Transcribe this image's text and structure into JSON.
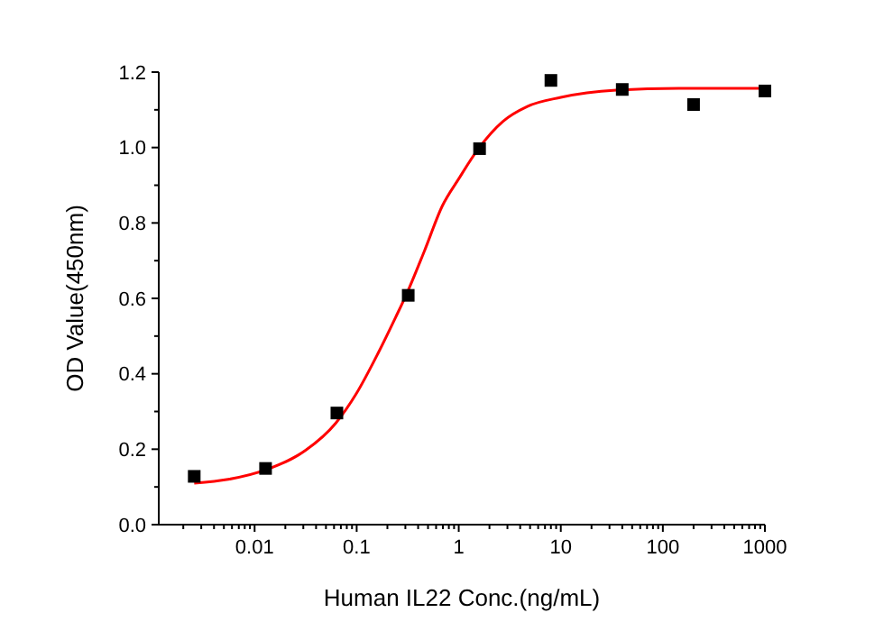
{
  "chart_data": {
    "type": "scatter",
    "xlabel": "Human IL22 Conc.(ng/mL)",
    "ylabel": "OD Value(450nm)",
    "log": "x",
    "xlim": [
      0.00115,
      1000
    ],
    "ylim": [
      0,
      1.2
    ],
    "xticks": [
      {
        "value": 0.002,
        "label": null
      },
      {
        "value": 0.003,
        "label": null
      },
      {
        "value": 0.004,
        "label": null
      },
      {
        "value": 0.005,
        "label": null
      },
      {
        "value": 0.006,
        "label": null
      },
      {
        "value": 0.007,
        "label": null
      },
      {
        "value": 0.008,
        "label": null
      },
      {
        "value": 0.009,
        "label": null
      },
      0.01,
      {
        "value": 0.02,
        "label": null
      },
      {
        "value": 0.03,
        "label": null
      },
      {
        "value": 0.04,
        "label": null
      },
      {
        "value": 0.05,
        "label": null
      },
      {
        "value": 0.06,
        "label": null
      },
      {
        "value": 0.07,
        "label": null
      },
      {
        "value": 0.08,
        "label": null
      },
      {
        "value": 0.09,
        "label": null
      },
      0.1,
      {
        "value": 0.2,
        "label": null
      },
      {
        "value": 0.3,
        "label": null
      },
      {
        "value": 0.4,
        "label": null
      },
      {
        "value": 0.5,
        "label": null
      },
      {
        "value": 0.6,
        "label": null
      },
      {
        "value": 0.7,
        "label": null
      },
      {
        "value": 0.8,
        "label": null
      },
      {
        "value": 0.9,
        "label": null
      },
      1,
      {
        "value": 2,
        "label": null
      },
      {
        "value": 3,
        "label": null
      },
      {
        "value": 4,
        "label": null
      },
      {
        "value": 5,
        "label": null
      },
      {
        "value": 6,
        "label": null
      },
      {
        "value": 7,
        "label": null
      },
      {
        "value": 8,
        "label": null
      },
      {
        "value": 9,
        "label": null
      },
      10,
      {
        "value": 20,
        "label": null
      },
      {
        "value": 30,
        "label": null
      },
      {
        "value": 40,
        "label": null
      },
      {
        "value": 50,
        "label": null
      },
      {
        "value": 60,
        "label": null
      },
      {
        "value": 70,
        "label": null
      },
      {
        "value": 80,
        "label": null
      },
      {
        "value": 90,
        "label": null
      },
      100,
      {
        "value": 200,
        "label": null
      },
      {
        "value": 300,
        "label": null
      },
      {
        "value": 400,
        "label": null
      },
      {
        "value": 500,
        "label": null
      },
      {
        "value": 600,
        "label": null
      },
      {
        "value": 700,
        "label": null
      },
      {
        "value": 800,
        "label": null
      },
      {
        "value": 900,
        "label": null
      },
      1000
    ],
    "yticks": [
      {
        "value": 0,
        "label": "0.0"
      },
      {
        "value": 0.1,
        "label": null
      },
      0.2,
      {
        "value": 0.3,
        "label": null
      },
      0.4,
      {
        "value": 0.5,
        "label": null
      },
      0.6,
      {
        "value": 0.7,
        "label": null
      },
      0.8,
      {
        "value": 0.9,
        "label": null
      },
      {
        "value": 1,
        "label": "1.0"
      },
      {
        "value": 1.1,
        "label": null
      },
      1.2
    ],
    "grid": false,
    "series": [
      {
        "type": "line",
        "color": "#ff0000",
        "marker": "none",
        "line_style": "solid",
        "x": [
          0.00256,
          0.0055,
          0.0131,
          0.0316,
          0.0623,
          0.1,
          0.161,
          0.24,
          0.31,
          0.46,
          0.69,
          1,
          1.56,
          2.7,
          4.7,
          10,
          35,
          143,
          1000
        ],
        "values": [
          0.11,
          0.12,
          0.146,
          0.197,
          0.269,
          0.349,
          0.453,
          0.549,
          0.613,
          0.725,
          0.845,
          0.917,
          0.997,
          1.069,
          1.109,
          1.133,
          1.152,
          1.157,
          1.157
        ]
      },
      {
        "color": "#000000",
        "marker": "square",
        "x": [
          0.00256,
          0.0128,
          0.064,
          0.32,
          1.6,
          8,
          40,
          200,
          1000
        ],
        "values": [
          0.128,
          0.149,
          0.296,
          0.608,
          0.997,
          1.178,
          1.154,
          1.114,
          1.15
        ]
      }
    ]
  }
}
